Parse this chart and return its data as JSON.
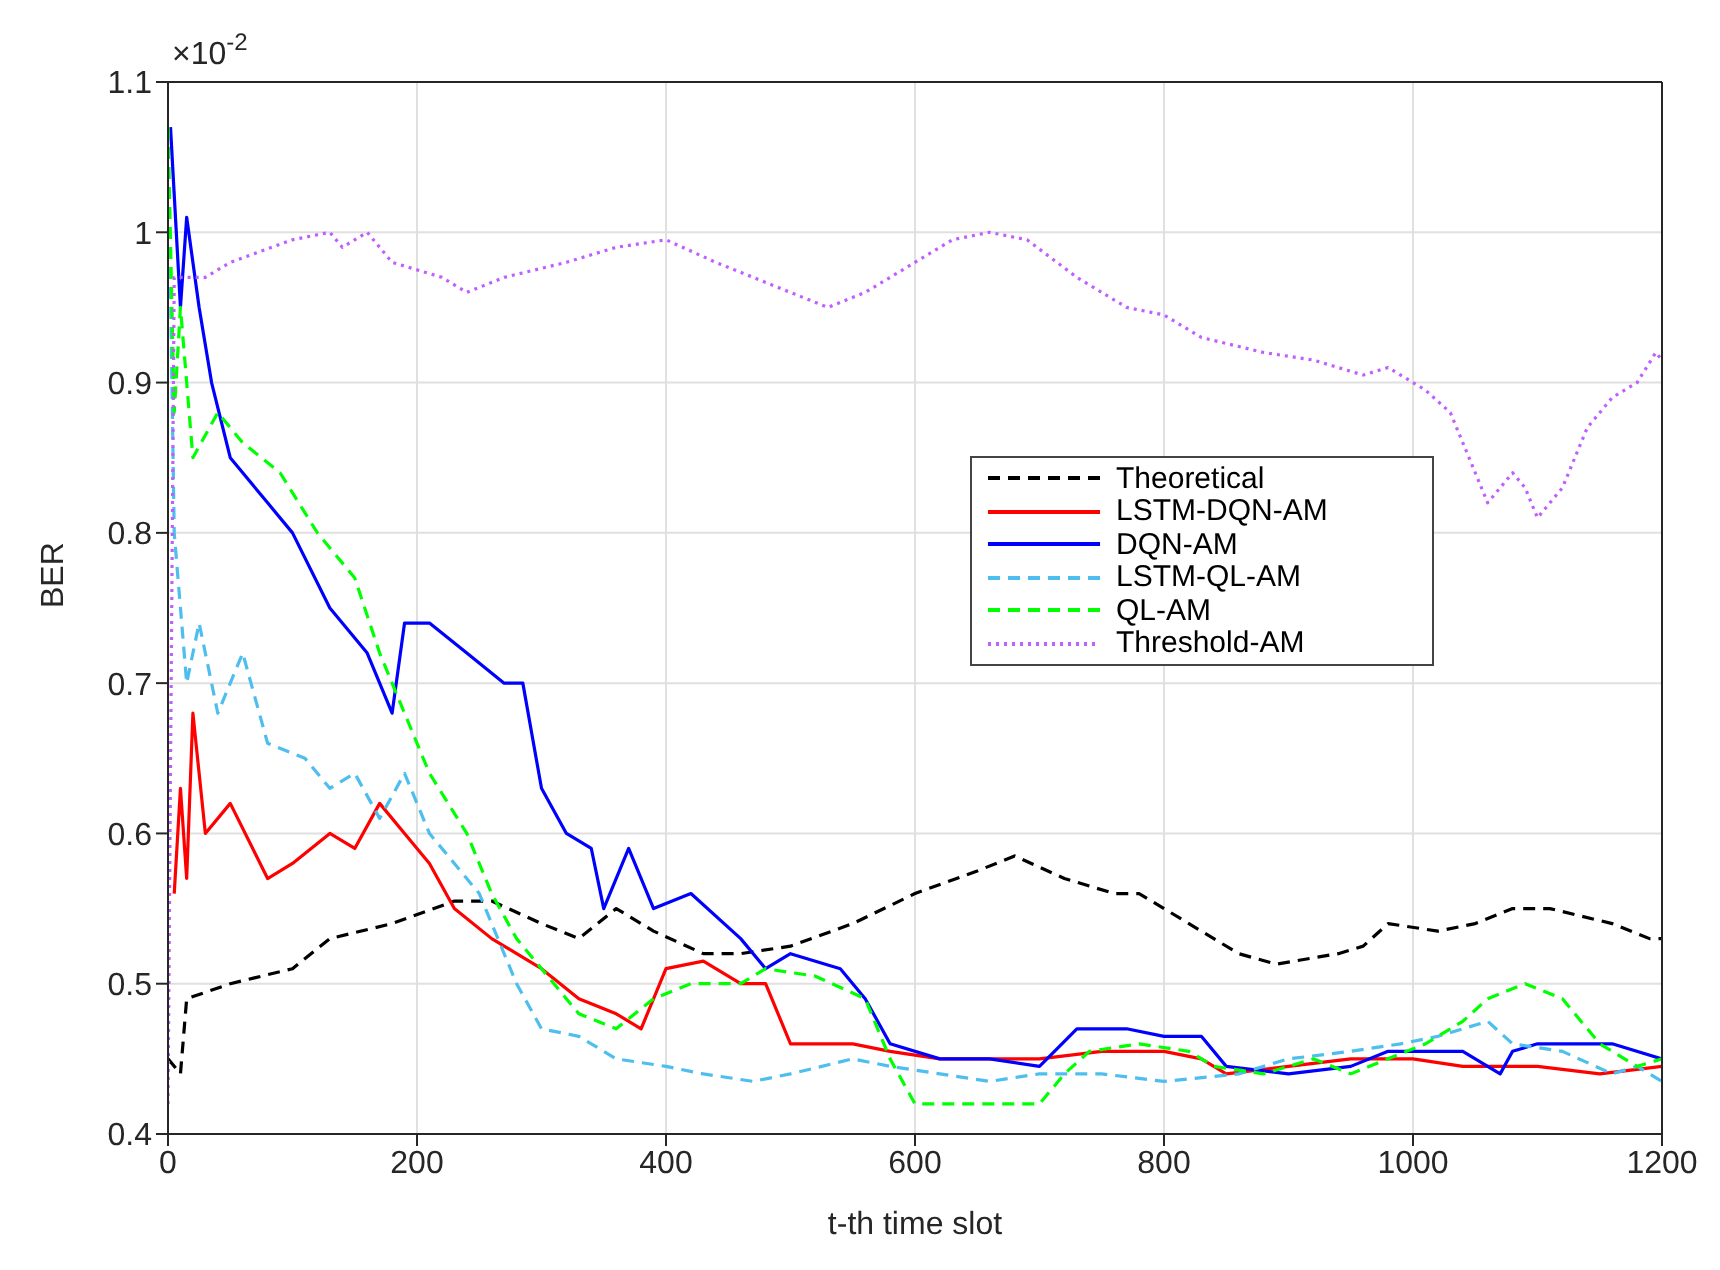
{
  "chart_data": {
    "type": "line",
    "xlabel": "t-th time slot",
    "ylabel": "BER",
    "annotations": [
      "×10$^{-2}$"
    ],
    "xlim": [
      0,
      1200
    ],
    "xticks": [
      0,
      200,
      400,
      600,
      800,
      1000,
      1200
    ],
    "ylim": [
      0.4,
      1.1
    ],
    "yticks": [
      0.4,
      0.5,
      0.6,
      0.7,
      0.8,
      0.9,
      1,
      1.1
    ],
    "grid": true,
    "legend": "right",
    "marker": "none",
    "series": [
      {
        "name": "Theoretical",
        "color": "#000000",
        "line_style": "dashed",
        "x": [
          0,
          10,
          15,
          50,
          100,
          130,
          180,
          230,
          260,
          300,
          330,
          360,
          390,
          430,
          460,
          500,
          550,
          600,
          650,
          680,
          720,
          760,
          780,
          820,
          860,
          890,
          940,
          960,
          980,
          1020,
          1050,
          1080,
          1110,
          1160,
          1190,
          1200
        ],
        "values": [
          0.45,
          0.44,
          0.49,
          0.5,
          0.51,
          0.53,
          0.54,
          0.555,
          0.555,
          0.54,
          0.53,
          0.55,
          0.535,
          0.52,
          0.52,
          0.525,
          0.54,
          0.56,
          0.575,
          0.585,
          0.57,
          0.56,
          0.56,
          0.54,
          0.52,
          0.513,
          0.52,
          0.525,
          0.54,
          0.535,
          0.54,
          0.55,
          0.55,
          0.54,
          0.53,
          0.53
        ]
      },
      {
        "name": "LSTM-DQN-AM",
        "color": "#ff0000",
        "line_style": "solid",
        "x": [
          5,
          10,
          15,
          20,
          30,
          50,
          80,
          100,
          130,
          150,
          170,
          190,
          210,
          230,
          260,
          300,
          330,
          360,
          380,
          400,
          430,
          460,
          480,
          500,
          550,
          580,
          620,
          660,
          700,
          750,
          800,
          830,
          850,
          900,
          950,
          1000,
          1040,
          1100,
          1150,
          1200
        ],
        "values": [
          0.56,
          0.63,
          0.57,
          0.68,
          0.6,
          0.62,
          0.57,
          0.58,
          0.6,
          0.59,
          0.62,
          0.6,
          0.58,
          0.55,
          0.53,
          0.51,
          0.49,
          0.48,
          0.47,
          0.51,
          0.515,
          0.5,
          0.5,
          0.46,
          0.46,
          0.455,
          0.45,
          0.45,
          0.45,
          0.455,
          0.455,
          0.45,
          0.44,
          0.445,
          0.45,
          0.45,
          0.445,
          0.445,
          0.44,
          0.445
        ]
      },
      {
        "name": "DQN-AM",
        "color": "#0000ff",
        "line_style": "solid",
        "x": [
          2,
          10,
          15,
          25,
          35,
          50,
          80,
          100,
          130,
          160,
          180,
          190,
          210,
          240,
          270,
          285,
          300,
          320,
          340,
          350,
          370,
          390,
          420,
          460,
          480,
          500,
          540,
          560,
          580,
          620,
          660,
          700,
          730,
          770,
          800,
          830,
          850,
          900,
          950,
          980,
          1040,
          1070,
          1080,
          1100,
          1160,
          1200
        ],
        "values": [
          1.07,
          0.95,
          1.01,
          0.95,
          0.9,
          0.85,
          0.82,
          0.8,
          0.75,
          0.72,
          0.68,
          0.74,
          0.74,
          0.72,
          0.7,
          0.7,
          0.63,
          0.6,
          0.59,
          0.55,
          0.59,
          0.55,
          0.56,
          0.53,
          0.51,
          0.52,
          0.51,
          0.49,
          0.46,
          0.45,
          0.45,
          0.445,
          0.47,
          0.47,
          0.465,
          0.465,
          0.445,
          0.44,
          0.445,
          0.455,
          0.455,
          0.44,
          0.455,
          0.46,
          0.46,
          0.45
        ]
      },
      {
        "name": "LSTM-QL-AM",
        "color": "#4dbeee",
        "line_style": "dashed",
        "x": [
          0,
          5,
          15,
          25,
          40,
          60,
          80,
          110,
          130,
          150,
          170,
          190,
          210,
          250,
          280,
          300,
          330,
          360,
          400,
          430,
          470,
          500,
          550,
          580,
          620,
          660,
          700,
          750,
          800,
          860,
          900,
          950,
          990,
          1020,
          1060,
          1080,
          1120,
          1160,
          1180,
          1200
        ],
        "values": [
          1.07,
          0.8,
          0.7,
          0.74,
          0.68,
          0.72,
          0.66,
          0.65,
          0.63,
          0.64,
          0.61,
          0.64,
          0.6,
          0.56,
          0.5,
          0.47,
          0.465,
          0.45,
          0.445,
          0.44,
          0.435,
          0.44,
          0.45,
          0.445,
          0.44,
          0.435,
          0.44,
          0.44,
          0.435,
          0.44,
          0.45,
          0.455,
          0.46,
          0.465,
          0.475,
          0.46,
          0.455,
          0.44,
          0.445,
          0.435
        ]
      },
      {
        "name": "QL-AM",
        "color": "#00ff00",
        "line_style": "dashed",
        "x": [
          0,
          5,
          10,
          20,
          40,
          60,
          90,
          120,
          150,
          170,
          190,
          210,
          240,
          260,
          280,
          300,
          330,
          360,
          390,
          420,
          460,
          480,
          520,
          560,
          580,
          600,
          650,
          700,
          720,
          740,
          780,
          820,
          840,
          880,
          920,
          950,
          980,
          1010,
          1040,
          1060,
          1090,
          1120,
          1150,
          1180,
          1200
        ],
        "values": [
          1.07,
          0.88,
          0.95,
          0.85,
          0.88,
          0.86,
          0.84,
          0.8,
          0.77,
          0.72,
          0.68,
          0.64,
          0.6,
          0.56,
          0.53,
          0.51,
          0.48,
          0.47,
          0.49,
          0.5,
          0.5,
          0.51,
          0.505,
          0.49,
          0.45,
          0.42,
          0.42,
          0.42,
          0.44,
          0.455,
          0.46,
          0.455,
          0.445,
          0.44,
          0.45,
          0.44,
          0.45,
          0.46,
          0.475,
          0.49,
          0.5,
          0.49,
          0.46,
          0.445,
          0.45
        ]
      },
      {
        "name": "Threshold-AM",
        "color": "#bf5fff",
        "line_style": "dotted",
        "x": [
          0,
          5,
          30,
          50,
          100,
          130,
          140,
          160,
          180,
          220,
          240,
          270,
          320,
          360,
          400,
          440,
          470,
          530,
          560,
          600,
          630,
          660,
          690,
          730,
          770,
          800,
          830,
          880,
          920,
          960,
          980,
          1010,
          1030,
          1050,
          1060,
          1080,
          1090,
          1100,
          1120,
          1140,
          1160,
          1180,
          1195,
          1200
        ],
        "values": [
          0.42,
          0.97,
          0.97,
          0.98,
          0.995,
          1,
          0.99,
          1,
          0.98,
          0.97,
          0.96,
          0.97,
          0.98,
          0.99,
          0.995,
          0.98,
          0.97,
          0.95,
          0.96,
          0.98,
          0.995,
          1,
          0.995,
          0.97,
          0.95,
          0.945,
          0.93,
          0.92,
          0.915,
          0.905,
          0.91,
          0.895,
          0.88,
          0.84,
          0.82,
          0.84,
          0.83,
          0.81,
          0.83,
          0.87,
          0.89,
          0.9,
          0.92,
          0.915
        ]
      }
    ]
  }
}
